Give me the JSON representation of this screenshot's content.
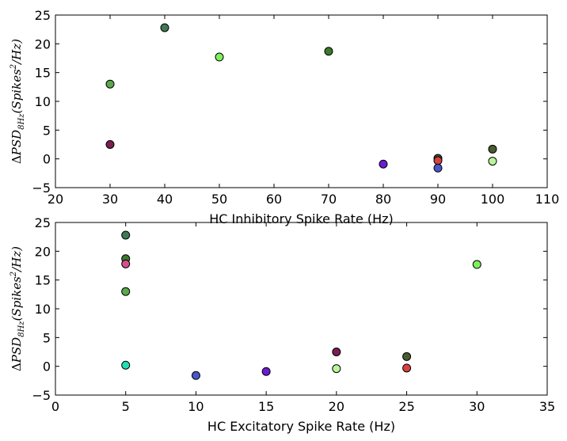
{
  "chart_data": [
    {
      "type": "scatter",
      "xlabel": "HC Inhibitory Spike Rate (Hz)",
      "ylabel": "ΔPSD8Hz(Spikes²/Hz)",
      "ylabel_parts": {
        "delta": "Δ",
        "main": "PSD",
        "sub": "8Hz",
        "open": "(Spikes",
        "sup": "2",
        "close": "/Hz)"
      },
      "xlim": [
        20,
        110
      ],
      "ylim": [
        -5,
        25
      ],
      "xticks": [
        20,
        30,
        40,
        50,
        60,
        70,
        80,
        90,
        100,
        110
      ],
      "yticks": [
        -5,
        0,
        5,
        10,
        15,
        20,
        25
      ],
      "grid": false,
      "points": [
        {
          "x": 30,
          "y": 13.0,
          "color": "#5ba84a"
        },
        {
          "x": 30,
          "y": 2.5,
          "color": "#7a1f4f"
        },
        {
          "x": 40,
          "y": 22.8,
          "color": "#3f7a52"
        },
        {
          "x": 50,
          "y": 17.7,
          "color": "#7ef05a"
        },
        {
          "x": 70,
          "y": 18.7,
          "color": "#3a7a2c"
        },
        {
          "x": 80,
          "y": -0.9,
          "color": "#6a1ed0"
        },
        {
          "x": 90,
          "y": 0.1,
          "color": "#3d5535"
        },
        {
          "x": 90,
          "y": -0.3,
          "color": "#d94040"
        },
        {
          "x": 90,
          "y": -1.6,
          "color": "#4a57c8"
        },
        {
          "x": 100,
          "y": 1.7,
          "color": "#4a5a32"
        },
        {
          "x": 100,
          "y": -0.4,
          "color": "#b8f59a"
        }
      ]
    },
    {
      "type": "scatter",
      "xlabel": "HC Excitatory Spike Rate (Hz)",
      "ylabel": "ΔPSD8Hz(Spikes²/Hz)",
      "ylabel_parts": {
        "delta": "Δ",
        "main": "PSD",
        "sub": "8Hz",
        "open": "(Spikes",
        "sup": "2",
        "close": "/Hz)"
      },
      "xlim": [
        0,
        35
      ],
      "ylim": [
        -5,
        25
      ],
      "xticks": [
        0,
        5,
        10,
        15,
        20,
        25,
        30,
        35
      ],
      "yticks": [
        -5,
        0,
        5,
        10,
        15,
        20,
        25
      ],
      "grid": false,
      "points": [
        {
          "x": 5,
          "y": 22.8,
          "color": "#3f7a52"
        },
        {
          "x": 5,
          "y": 18.7,
          "color": "#3a7a2c"
        },
        {
          "x": 5,
          "y": 17.8,
          "color": "#d4508a"
        },
        {
          "x": 5,
          "y": 13.0,
          "color": "#5ba84a"
        },
        {
          "x": 5,
          "y": 0.2,
          "color": "#20e0b0"
        },
        {
          "x": 10,
          "y": -1.6,
          "color": "#4a57c8"
        },
        {
          "x": 15,
          "y": -0.9,
          "color": "#6a1ed0"
        },
        {
          "x": 20,
          "y": 2.5,
          "color": "#7a1f4f"
        },
        {
          "x": 20,
          "y": -0.4,
          "color": "#b8f59a"
        },
        {
          "x": 25,
          "y": 1.7,
          "color": "#4a5a32"
        },
        {
          "x": 25,
          "y": -0.3,
          "color": "#d94040"
        },
        {
          "x": 30,
          "y": 17.7,
          "color": "#7ef05a"
        }
      ]
    }
  ]
}
